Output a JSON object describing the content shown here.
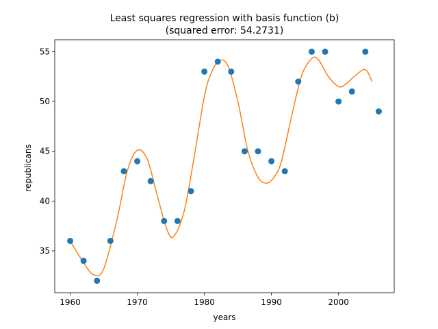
{
  "chart_data": {
    "type": "scatter",
    "title": "Least squares regression with basis function (b)",
    "subtitle": "(squared error: 54.2731)",
    "xlabel": "years",
    "ylabel": "republicans",
    "xlim": [
      1957.7,
      2008.3
    ],
    "ylim": [
      30.8,
      56.2
    ],
    "xticks": [
      1960,
      1970,
      1980,
      1990,
      2000
    ],
    "yticks": [
      35,
      40,
      45,
      50,
      55
    ],
    "grid": false,
    "legend": "none",
    "colors": {
      "points": "#1f77b4",
      "fit": "#ff7f0e"
    },
    "series": [
      {
        "kind": "points",
        "x": [
          1960,
          1962,
          1964,
          1966,
          1968,
          1970,
          1972,
          1974,
          1976,
          1978,
          1980,
          1982,
          1984,
          1986,
          1988,
          1990,
          1992,
          1994,
          1996,
          1998,
          2000,
          2002,
          2004,
          2006
        ],
        "y": [
          36,
          34,
          32,
          36,
          43,
          44,
          42,
          38,
          38,
          41,
          53,
          54,
          53,
          45,
          45,
          44,
          43,
          52,
          55,
          55,
          50,
          51,
          55,
          49
        ]
      },
      {
        "kind": "fit",
        "x": [
          1960,
          1962,
          1963.5,
          1965,
          1967,
          1968.5,
          1970,
          1971.5,
          1973,
          1974.5,
          1975.5,
          1977,
          1978.5,
          1980,
          1981,
          1982.2,
          1983.5,
          1985,
          1986.5,
          1988,
          1989.3,
          1990.5,
          1991.5,
          1993,
          1994.5,
          1996,
          1997,
          1998.5,
          2000,
          2001,
          2002.5,
          2004,
          2005
        ],
        "y": [
          36,
          33.8,
          32.6,
          33.2,
          38.2,
          43,
          45.1,
          44.2,
          40.5,
          37,
          36.5,
          39,
          44.5,
          50.5,
          52.8,
          54.1,
          53.6,
          50,
          45,
          42.4,
          41.8,
          42.5,
          44,
          48.5,
          52.6,
          54.3,
          54.2,
          52.5,
          51.5,
          51.7,
          52.6,
          53.2,
          52
        ]
      }
    ]
  }
}
